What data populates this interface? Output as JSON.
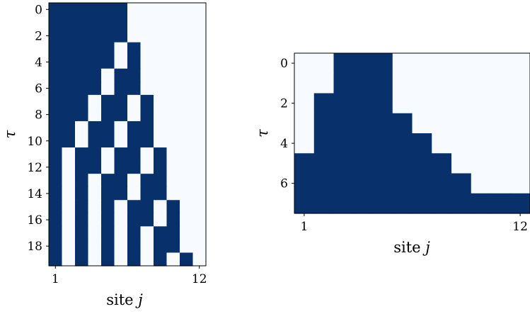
{
  "colors": {
    "filled": "#08306b",
    "empty": "#f7fbff",
    "frame": "#000000"
  },
  "chart_data": [
    {
      "type": "heatmap",
      "xlabel": {
        "text": "site ",
        "var": "j"
      },
      "ylabel": "τ",
      "xticks": [
        1,
        12
      ],
      "yticks": [
        0,
        2,
        4,
        6,
        8,
        10,
        12,
        14,
        16,
        18
      ],
      "x_range": [
        1,
        12
      ],
      "y_range": [
        0,
        19
      ],
      "grid": false,
      "matrix": [
        [
          1,
          1,
          1,
          1,
          1,
          1,
          0,
          0,
          0,
          0,
          0,
          0
        ],
        [
          1,
          1,
          1,
          1,
          1,
          1,
          0,
          0,
          0,
          0,
          0,
          0
        ],
        [
          1,
          1,
          1,
          1,
          1,
          1,
          0,
          0,
          0,
          0,
          0,
          0
        ],
        [
          1,
          1,
          1,
          1,
          1,
          0,
          1,
          0,
          0,
          0,
          0,
          0
        ],
        [
          1,
          1,
          1,
          1,
          1,
          0,
          1,
          0,
          0,
          0,
          0,
          0
        ],
        [
          1,
          1,
          1,
          1,
          0,
          1,
          1,
          0,
          0,
          0,
          0,
          0
        ],
        [
          1,
          1,
          1,
          1,
          0,
          1,
          1,
          0,
          0,
          0,
          0,
          0
        ],
        [
          1,
          1,
          1,
          0,
          1,
          1,
          0,
          1,
          0,
          0,
          0,
          0
        ],
        [
          1,
          1,
          1,
          0,
          1,
          1,
          0,
          1,
          0,
          0,
          0,
          0
        ],
        [
          1,
          1,
          0,
          1,
          1,
          0,
          1,
          1,
          0,
          0,
          0,
          0
        ],
        [
          1,
          1,
          0,
          1,
          1,
          0,
          1,
          1,
          0,
          0,
          0,
          0
        ],
        [
          1,
          0,
          1,
          1,
          0,
          1,
          1,
          0,
          1,
          0,
          0,
          0
        ],
        [
          1,
          0,
          1,
          1,
          0,
          1,
          1,
          0,
          1,
          0,
          0,
          0
        ],
        [
          1,
          0,
          1,
          0,
          1,
          1,
          0,
          1,
          1,
          0,
          0,
          0
        ],
        [
          1,
          0,
          1,
          0,
          1,
          1,
          0,
          1,
          1,
          0,
          0,
          0
        ],
        [
          1,
          0,
          1,
          0,
          1,
          0,
          1,
          1,
          0,
          1,
          0,
          0
        ],
        [
          1,
          0,
          1,
          0,
          1,
          0,
          1,
          1,
          0,
          1,
          0,
          0
        ],
        [
          1,
          0,
          1,
          0,
          1,
          0,
          1,
          0,
          1,
          1,
          0,
          0
        ],
        [
          1,
          0,
          1,
          0,
          1,
          0,
          1,
          0,
          1,
          1,
          0,
          0
        ],
        [
          1,
          0,
          1,
          0,
          1,
          0,
          1,
          0,
          1,
          0,
          1,
          0
        ]
      ]
    },
    {
      "type": "heatmap",
      "xlabel": {
        "text": "site ",
        "var": "j"
      },
      "ylabel": "τ",
      "xticks": [
        1,
        12
      ],
      "yticks": [
        0,
        2,
        4,
        6
      ],
      "x_range": [
        1,
        12
      ],
      "y_range": [
        0,
        7
      ],
      "grid": false,
      "matrix": [
        [
          0,
          0,
          1,
          1,
          1,
          0,
          0,
          0,
          0,
          0,
          0,
          0
        ],
        [
          0,
          0,
          1,
          1,
          1,
          0,
          0,
          0,
          0,
          0,
          0,
          0
        ],
        [
          0,
          1,
          1,
          1,
          1,
          0,
          0,
          0,
          0,
          0,
          0,
          0
        ],
        [
          0,
          1,
          1,
          1,
          1,
          1,
          0,
          0,
          0,
          0,
          0,
          0
        ],
        [
          0,
          1,
          1,
          1,
          1,
          1,
          1,
          0,
          0,
          0,
          0,
          0
        ],
        [
          1,
          1,
          1,
          1,
          1,
          1,
          1,
          1,
          0,
          0,
          0,
          0
        ],
        [
          1,
          1,
          1,
          1,
          1,
          1,
          1,
          1,
          1,
          0,
          0,
          0
        ],
        [
          1,
          1,
          1,
          1,
          1,
          1,
          1,
          1,
          1,
          1,
          1,
          1
        ]
      ]
    }
  ]
}
